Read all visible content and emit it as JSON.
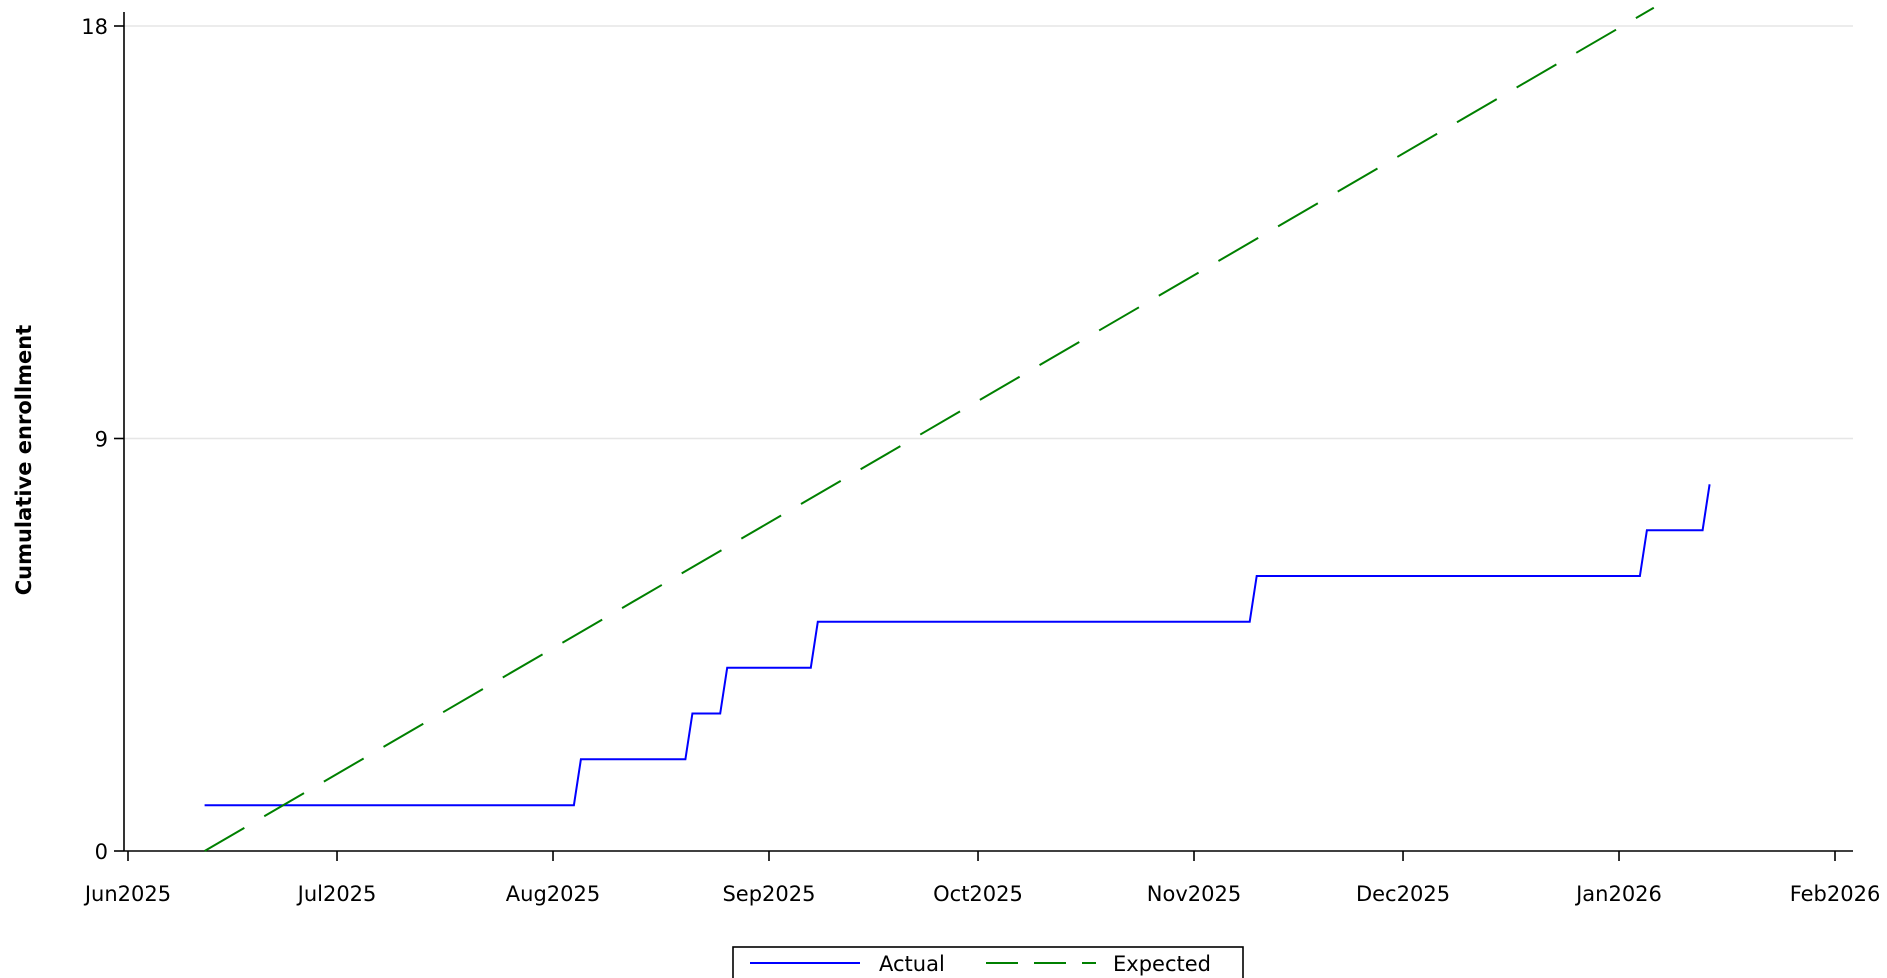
{
  "chart_data": {
    "type": "line",
    "title": "",
    "xlabel": "",
    "ylabel": "Cumulative enrollment",
    "ylim": [
      0,
      18
    ],
    "yticks": [
      0,
      9,
      18
    ],
    "xlim": [
      "2025-06-01",
      "2026-02-01"
    ],
    "xticks": [
      {
        "date": "2025-06-01",
        "label": "Jun2025"
      },
      {
        "date": "2025-07-01",
        "label": "Jul2025"
      },
      {
        "date": "2025-08-01",
        "label": "Aug2025"
      },
      {
        "date": "2025-09-01",
        "label": "Sep2025"
      },
      {
        "date": "2025-10-01",
        "label": "Oct2025"
      },
      {
        "date": "2025-11-01",
        "label": "Nov2025"
      },
      {
        "date": "2025-12-01",
        "label": "Dec2025"
      },
      {
        "date": "2026-01-01",
        "label": "Jan2026"
      },
      {
        "date": "2026-02-01",
        "label": "Feb2026"
      }
    ],
    "grid": true,
    "legend_position": "bottom",
    "series": [
      {
        "name": "Actual",
        "color": "#0000ff",
        "style": "solid",
        "points": [
          {
            "x": "2025-06-12",
            "y": 1
          },
          {
            "x": "2025-08-04",
            "y": 1
          },
          {
            "x": "2025-08-05",
            "y": 2
          },
          {
            "x": "2025-08-20",
            "y": 2
          },
          {
            "x": "2025-08-21",
            "y": 3
          },
          {
            "x": "2025-08-25",
            "y": 3
          },
          {
            "x": "2025-08-26",
            "y": 4
          },
          {
            "x": "2025-09-07",
            "y": 4
          },
          {
            "x": "2025-09-08",
            "y": 5
          },
          {
            "x": "2025-11-09",
            "y": 5
          },
          {
            "x": "2025-11-10",
            "y": 6
          },
          {
            "x": "2026-01-04",
            "y": 6
          },
          {
            "x": "2026-01-05",
            "y": 7
          },
          {
            "x": "2026-01-13",
            "y": 7
          },
          {
            "x": "2026-01-14",
            "y": 8
          }
        ]
      },
      {
        "name": "Expected",
        "color": "#008000",
        "style": "dashed",
        "points": [
          {
            "x": "2025-06-12",
            "y": 0
          },
          {
            "x": "2026-01-06",
            "y": 18.4
          }
        ]
      }
    ]
  }
}
